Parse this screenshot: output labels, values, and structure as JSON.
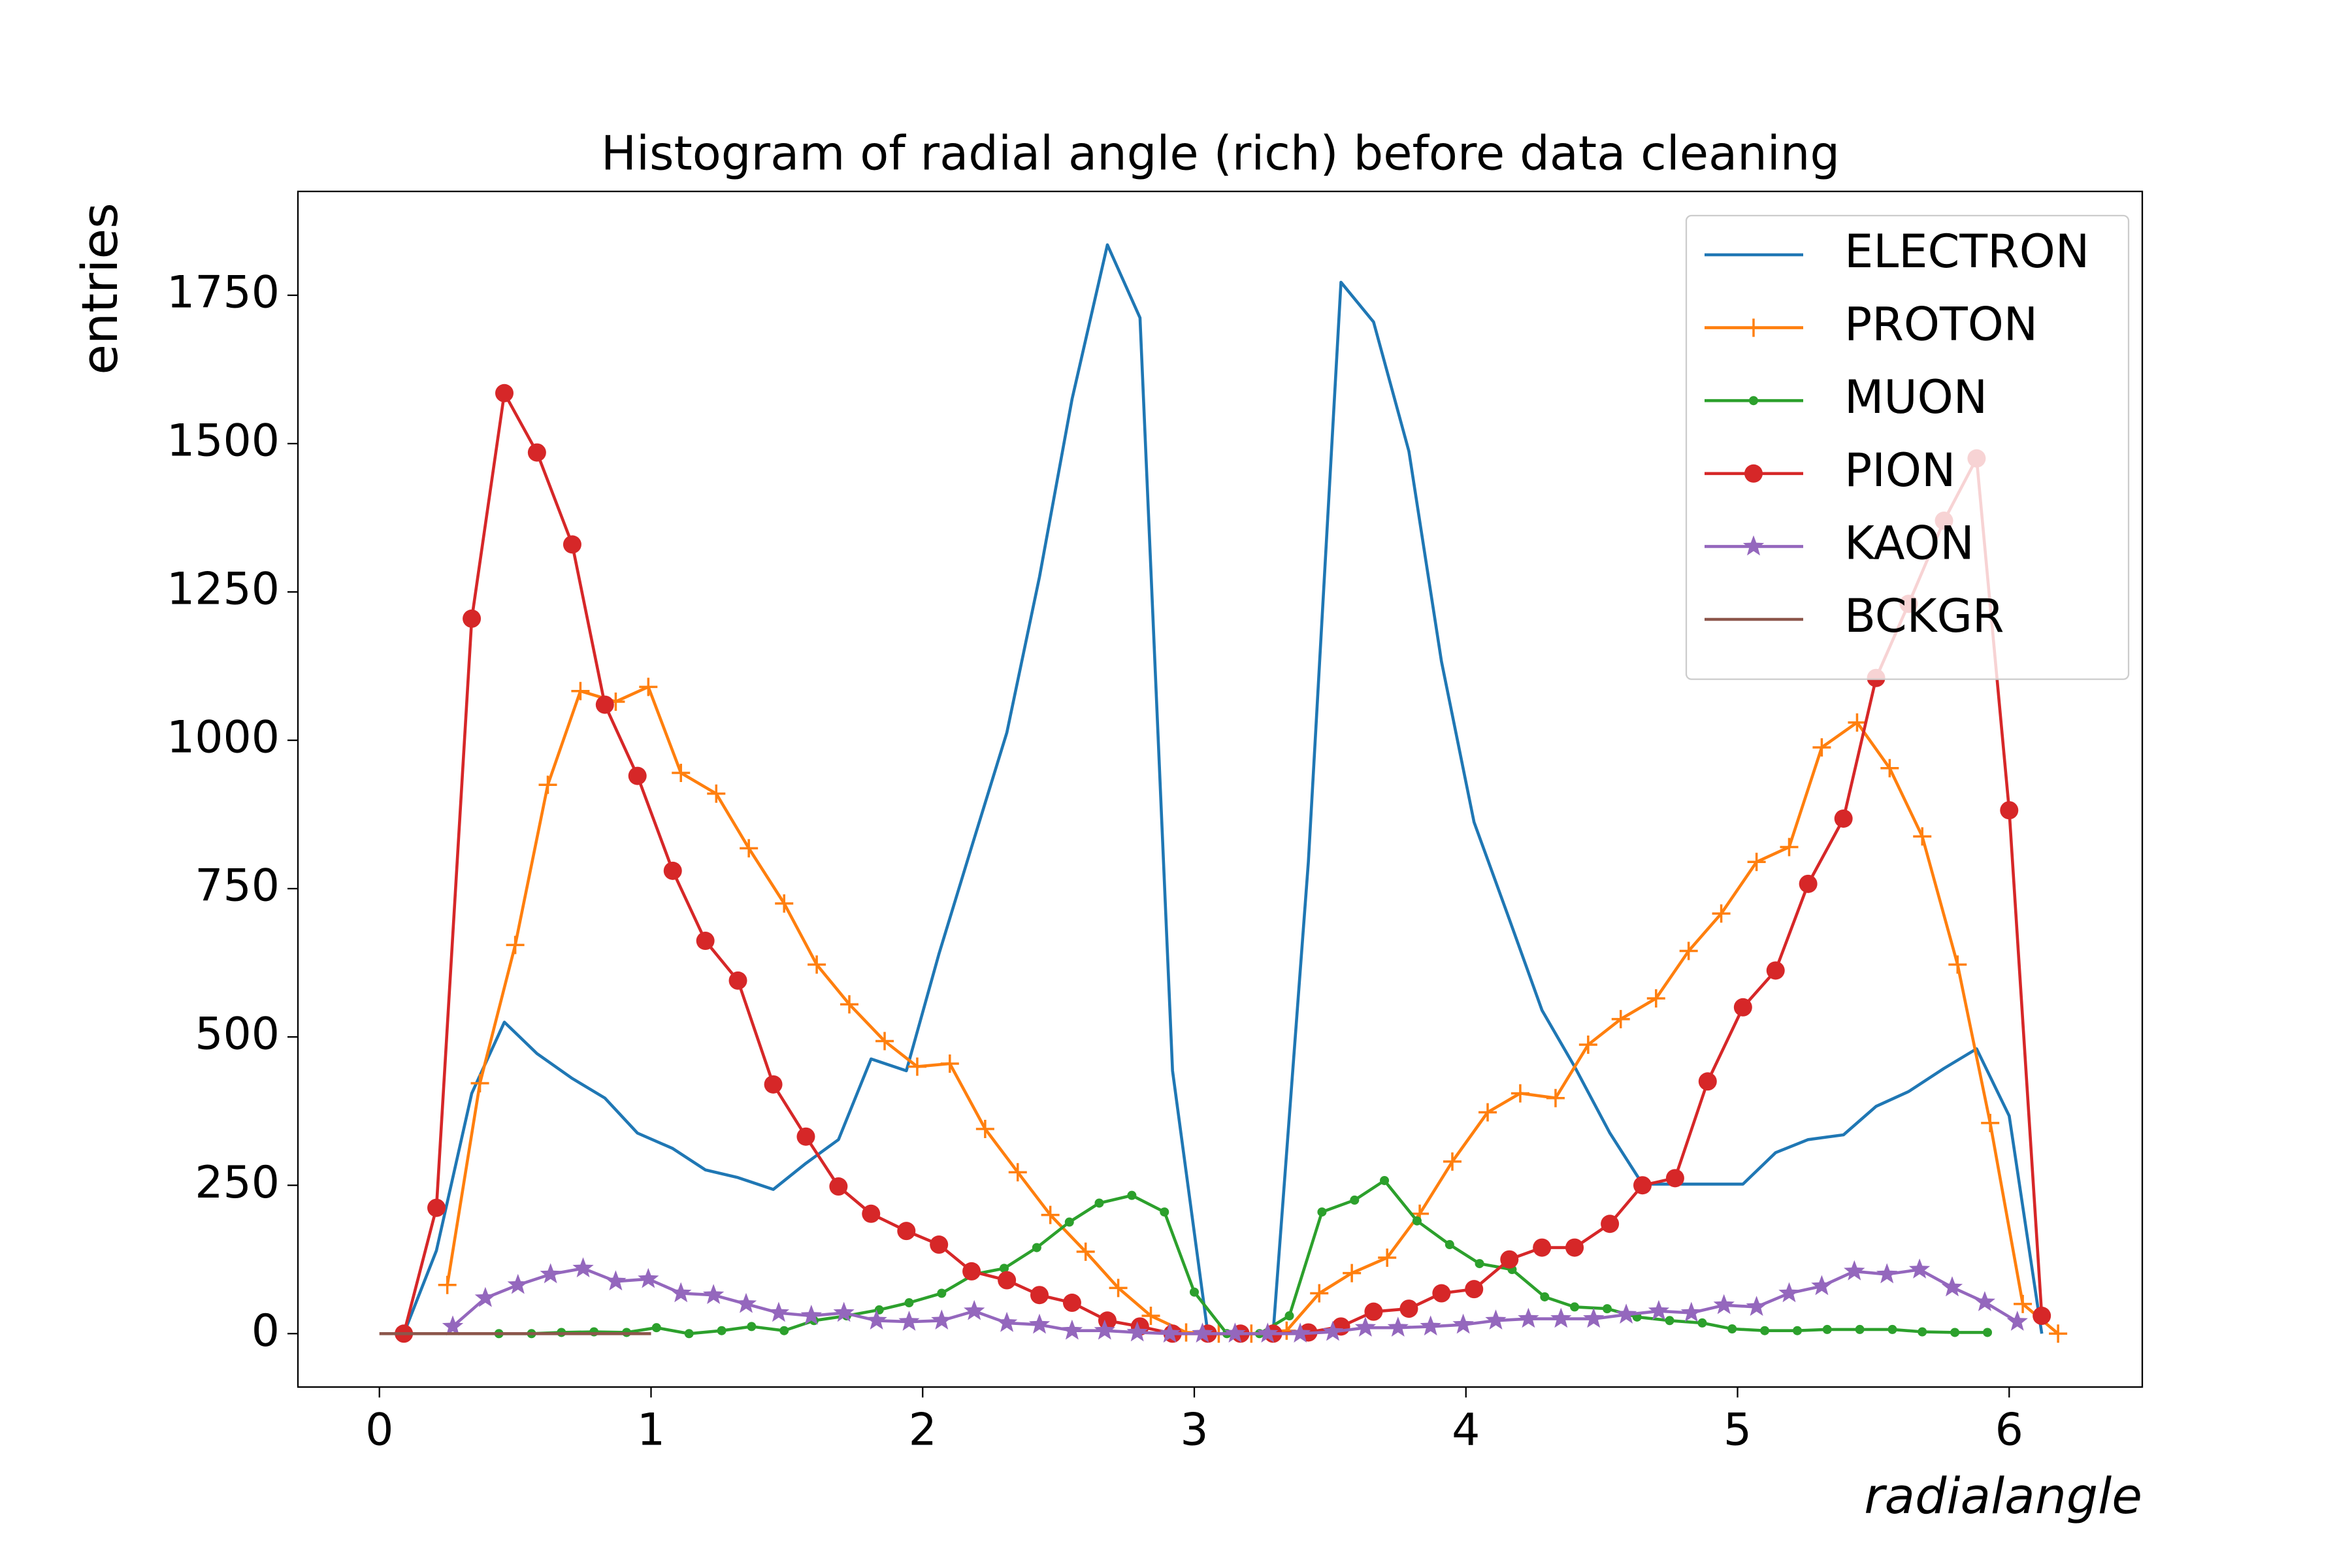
{
  "chart_data": {
    "type": "line",
    "title": "Histogram of radial angle (rich) before data cleaning",
    "x_label": "radialangle",
    "y_label": "entries",
    "xlim": [
      -0.3,
      6.49
    ],
    "ylim": [
      -90,
      1925
    ],
    "xticks": [
      0,
      1,
      2,
      3,
      4,
      5,
      6
    ],
    "yticks": [
      0,
      250,
      500,
      750,
      1000,
      1250,
      1500,
      1750
    ],
    "grid": false,
    "legend": "upper right",
    "series": [
      {
        "name": "ELECTRON",
        "color": "#1f77b4",
        "marker": "none",
        "x": [
          0.09,
          0.21,
          0.34,
          0.46,
          0.58,
          0.71,
          0.83,
          0.95,
          1.08,
          1.2,
          1.32,
          1.45,
          1.57,
          1.69,
          1.81,
          1.94,
          2.06,
          2.18,
          2.31,
          2.43,
          2.55,
          2.68,
          2.8,
          2.92,
          3.05,
          3.17,
          3.29,
          3.42,
          3.54,
          3.66,
          3.79,
          3.91,
          4.03,
          4.16,
          4.28,
          4.4,
          4.53,
          4.65,
          4.77,
          4.89,
          5.02,
          5.14,
          5.26,
          5.39,
          5.51,
          5.63,
          5.76,
          5.88,
          6.0,
          6.12
        ],
        "values": [
          0,
          140,
          405,
          525,
          472,
          430,
          397,
          338,
          312,
          276,
          263,
          243,
          287,
          327,
          463,
          443,
          640,
          820,
          1013,
          1275,
          1575,
          1835,
          1712,
          443,
          0,
          0,
          0,
          795,
          1772,
          1705,
          1487,
          1133,
          862,
          698,
          545,
          450,
          338,
          252,
          252,
          252,
          252,
          305,
          327,
          335,
          383,
          408,
          447,
          480,
          367,
          0
        ]
      },
      {
        "name": "PROTON",
        "color": "#ff7f0e",
        "marker": "plus",
        "x": [
          0.25,
          0.37,
          0.5,
          0.62,
          0.74,
          0.87,
          0.99,
          1.11,
          1.24,
          1.36,
          1.49,
          1.61,
          1.73,
          1.86,
          1.98,
          2.1,
          2.23,
          2.35,
          2.47,
          2.6,
          2.72,
          2.84,
          2.97,
          3.09,
          3.21,
          3.34,
          3.46,
          3.58,
          3.71,
          3.83,
          3.95,
          4.08,
          4.2,
          4.33,
          4.45,
          4.57,
          4.7,
          4.82,
          4.94,
          5.07,
          5.19,
          5.31,
          5.44,
          5.56,
          5.68,
          5.81,
          5.93,
          6.05,
          6.18
        ],
        "values": [
          82,
          422,
          655,
          925,
          1083,
          1065,
          1090,
          945,
          910,
          818,
          725,
          622,
          555,
          493,
          450,
          455,
          345,
          272,
          200,
          138,
          77,
          30,
          2,
          0,
          0,
          5,
          68,
          102,
          128,
          202,
          290,
          373,
          405,
          397,
          487,
          530,
          565,
          645,
          708,
          795,
          820,
          988,
          1030,
          953,
          838,
          622,
          355,
          50,
          0
        ]
      },
      {
        "name": "MUON",
        "color": "#2ca02c",
        "marker": "dot",
        "x": [
          0.44,
          0.56,
          0.67,
          0.79,
          0.91,
          1.02,
          1.14,
          1.26,
          1.37,
          1.49,
          1.6,
          1.72,
          1.84,
          1.95,
          2.07,
          2.19,
          2.3,
          2.42,
          2.54,
          2.65,
          2.77,
          2.89,
          3.0,
          3.12,
          3.24,
          3.35,
          3.47,
          3.59,
          3.7,
          3.82,
          3.94,
          4.05,
          4.17,
          4.29,
          4.4,
          4.52,
          4.63,
          4.75,
          4.87,
          4.98,
          5.1,
          5.22,
          5.33,
          5.45,
          5.57,
          5.68,
          5.8,
          5.92
        ],
        "values": [
          0,
          0,
          2,
          3,
          2,
          10,
          0,
          5,
          12,
          5,
          22,
          30,
          40,
          52,
          68,
          100,
          110,
          145,
          188,
          220,
          233,
          205,
          70,
          0,
          0,
          30,
          205,
          225,
          258,
          190,
          150,
          118,
          108,
          62,
          45,
          42,
          28,
          22,
          18,
          8,
          5,
          5,
          7,
          7,
          7,
          3,
          2,
          2
        ]
      },
      {
        "name": "PION",
        "color": "#d62728",
        "marker": "circle",
        "x": [
          0.09,
          0.21,
          0.34,
          0.46,
          0.58,
          0.71,
          0.83,
          0.95,
          1.08,
          1.2,
          1.32,
          1.45,
          1.57,
          1.69,
          1.81,
          1.94,
          2.06,
          2.18,
          2.31,
          2.43,
          2.55,
          2.68,
          2.8,
          2.92,
          3.05,
          3.17,
          3.29,
          3.42,
          3.54,
          3.66,
          3.79,
          3.91,
          4.03,
          4.16,
          4.28,
          4.4,
          4.53,
          4.65,
          4.77,
          4.89,
          5.02,
          5.14,
          5.26,
          5.39,
          5.51,
          5.63,
          5.76,
          5.88,
          6.0,
          6.12
        ],
        "values": [
          0,
          212,
          1205,
          1585,
          1485,
          1330,
          1060,
          940,
          780,
          662,
          595,
          420,
          332,
          248,
          202,
          173,
          150,
          105,
          90,
          65,
          52,
          22,
          12,
          0,
          0,
          0,
          0,
          2,
          12,
          37,
          42,
          68,
          75,
          125,
          145,
          145,
          185,
          250,
          262,
          425,
          550,
          612,
          758,
          868,
          1105,
          1230,
          1370,
          1475,
          882,
          30
        ]
      },
      {
        "name": "KAON",
        "color": "#9467bd",
        "marker": "star",
        "x": [
          0.27,
          0.39,
          0.51,
          0.63,
          0.75,
          0.87,
          0.99,
          1.11,
          1.23,
          1.35,
          1.47,
          1.59,
          1.71,
          1.83,
          1.95,
          2.07,
          2.19,
          2.31,
          2.43,
          2.55,
          2.67,
          2.79,
          2.91,
          3.03,
          3.15,
          3.27,
          3.39,
          3.51,
          3.63,
          3.75,
          3.87,
          3.99,
          4.11,
          4.23,
          4.35,
          4.47,
          4.59,
          4.71,
          4.83,
          4.95,
          5.07,
          5.19,
          5.31,
          5.43,
          5.55,
          5.67,
          5.79,
          5.91,
          6.03
        ],
        "values": [
          12,
          60,
          82,
          100,
          110,
          88,
          92,
          68,
          65,
          50,
          35,
          30,
          35,
          22,
          20,
          22,
          38,
          18,
          15,
          5,
          5,
          2,
          0,
          0,
          0,
          0,
          0,
          3,
          10,
          10,
          12,
          15,
          22,
          25,
          25,
          25,
          32,
          38,
          35,
          48,
          45,
          68,
          80,
          105,
          100,
          108,
          78,
          53,
          20
        ]
      },
      {
        "name": "BCKGR",
        "color": "#8c564b",
        "marker": "none",
        "x": [
          0,
          1
        ],
        "values": [
          0,
          0
        ]
      }
    ]
  }
}
